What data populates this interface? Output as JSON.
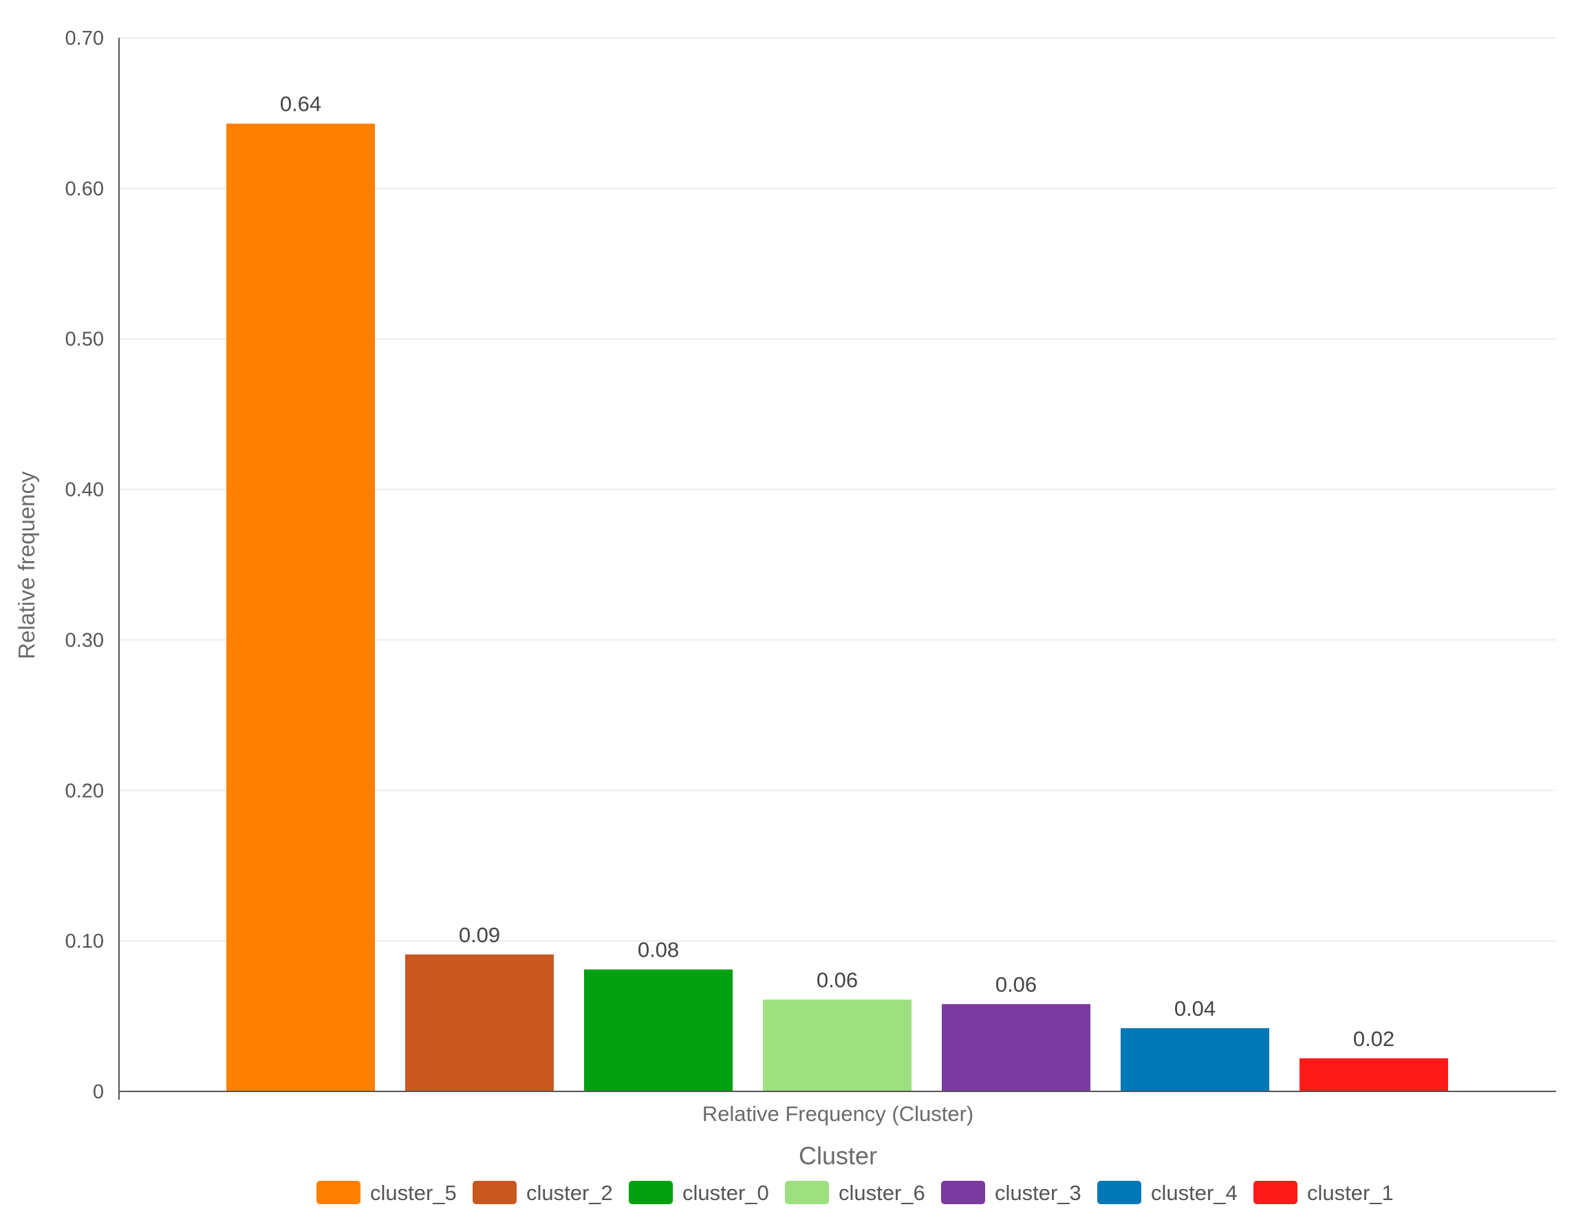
{
  "chart_data": {
    "type": "bar",
    "title": "",
    "xlabel": "Relative Frequency (Cluster)",
    "ylabel": "Relative frequency",
    "ylim": [
      0,
      0.7
    ],
    "yticks": [
      0,
      0.1,
      0.2,
      0.3,
      0.4,
      0.5,
      0.6,
      0.7
    ],
    "ytick_labels": [
      "0",
      "0.10",
      "0.20",
      "0.30",
      "0.40",
      "0.50",
      "0.60",
      "0.70"
    ],
    "grid": true,
    "legend": {
      "title": "Cluster",
      "placement": "bottom"
    },
    "categories": [
      "cluster_5",
      "cluster_2",
      "cluster_0",
      "cluster_6",
      "cluster_3",
      "cluster_4",
      "cluster_1"
    ],
    "values": [
      0.643,
      0.091,
      0.081,
      0.061,
      0.058,
      0.042,
      0.022
    ],
    "data_labels": [
      "0.64",
      "0.09",
      "0.08",
      "0.06",
      "0.06",
      "0.04",
      "0.02"
    ],
    "colors": [
      "#FF8000",
      "#C85820",
      "#00A010",
      "#9CE080",
      "#7A3A9E",
      "#0077B6",
      "#FF1A1A"
    ]
  }
}
